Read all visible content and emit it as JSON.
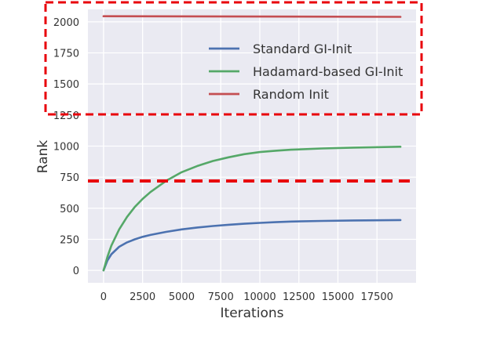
{
  "chart_data": {
    "type": "line",
    "title": "",
    "xlabel": "Iterations",
    "ylabel": "Rank",
    "xlim": [
      -1000,
      20000
    ],
    "ylim": [
      -100,
      2100
    ],
    "xticks": [
      0,
      2500,
      5000,
      7500,
      10000,
      12500,
      15000,
      17500
    ],
    "yticks": [
      0,
      250,
      500,
      750,
      1000,
      1250,
      1500,
      1750,
      2000
    ],
    "grid": true,
    "legend_position": "top-right",
    "series": [
      {
        "name": "Standard GI-Init",
        "color": "#4c72b0",
        "x": [
          0,
          250,
          500,
          1000,
          1500,
          2000,
          2500,
          3000,
          4000,
          5000,
          6000,
          7000,
          8000,
          9000,
          10000,
          11000,
          12000,
          14000,
          16000,
          19000
        ],
        "y": [
          0,
          80,
          130,
          190,
          225,
          250,
          270,
          285,
          310,
          330,
          345,
          357,
          367,
          375,
          382,
          388,
          393,
          398,
          402,
          405
        ]
      },
      {
        "name": "Hadamard-based GI-Init",
        "color": "#55a868",
        "x": [
          0,
          250,
          500,
          1000,
          1500,
          2000,
          2500,
          3000,
          4000,
          5000,
          6000,
          7000,
          8000,
          9000,
          10000,
          11000,
          12000,
          14000,
          16000,
          19000
        ],
        "y": [
          0,
          110,
          200,
          330,
          430,
          510,
          575,
          630,
          720,
          790,
          840,
          880,
          910,
          935,
          952,
          963,
          971,
          981,
          988,
          995
        ]
      },
      {
        "name": "Random Init",
        "color": "#c44e52",
        "x": [
          0,
          19000
        ],
        "y": [
          2045,
          2040
        ]
      }
    ],
    "annotations": [
      {
        "kind": "dashed-box",
        "color": "#e8000b",
        "note": "highlights the Random Init region"
      },
      {
        "kind": "dashed-hline",
        "color": "#e8000b",
        "note": "reference threshold line"
      }
    ]
  }
}
